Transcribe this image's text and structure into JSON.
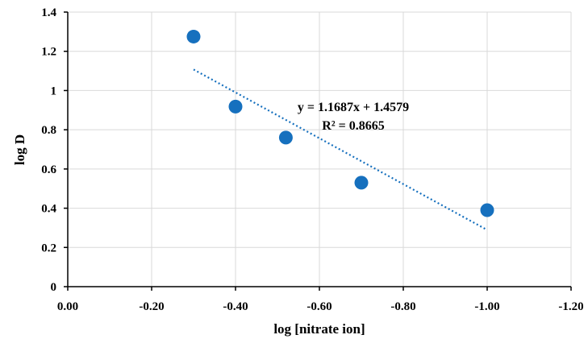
{
  "chart_data": {
    "type": "scatter",
    "xlabel": "log [nitrate ion]",
    "ylabel": "log D",
    "xlim": [
      0.0,
      -1.2
    ],
    "ylim": [
      0,
      1.4
    ],
    "x_ticks": [
      0.0,
      -0.2,
      -0.4,
      -0.6,
      -0.8,
      -1.0,
      -1.2
    ],
    "x_tick_labels": [
      "0.00",
      "-0.20",
      "-0.40",
      "-0.60",
      "-0.80",
      "-1.00",
      "-1.20"
    ],
    "y_ticks": [
      0,
      0.2,
      0.4,
      0.6,
      0.8,
      1.0,
      1.2,
      1.4
    ],
    "y_tick_labels": [
      "0",
      "0.2",
      "0.4",
      "0.6",
      "0.8",
      "1",
      "1.2",
      "1.4"
    ],
    "grid": true,
    "series": [
      {
        "x": [
          -0.3,
          -0.4,
          -0.52,
          -0.7,
          -1.0
        ],
        "y": [
          1.275,
          0.918,
          0.76,
          0.53,
          0.39
        ],
        "color": "#1670be"
      }
    ],
    "trendline": {
      "type": "linear",
      "slope": 1.1687,
      "intercept": 1.4579,
      "x_range": [
        -0.3,
        -1.0
      ],
      "color": "#1670be",
      "style": "dotted"
    },
    "annotations": [
      "y = 1.1687x + 1.4579",
      "R² = 0.8665"
    ]
  }
}
